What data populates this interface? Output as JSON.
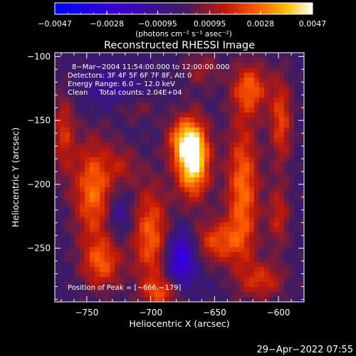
{
  "chart_data": {
    "type": "heatmap",
    "title": "Reconstructed RHESSI Image",
    "xlabel": "Heliocentric X (arcsec)",
    "ylabel": "Heliocentric Y (arcsec)",
    "xlim": [
      -775,
      -580
    ],
    "ylim": [
      -292,
      -97
    ],
    "x_ticks": [
      -750,
      -700,
      -650,
      -600
    ],
    "x_tick_labels": [
      "−750",
      "−700",
      "−650",
      "−600"
    ],
    "y_ticks": [
      -100,
      -150,
      -200,
      -250
    ],
    "y_tick_labels": [
      "−100",
      "−150",
      "−200",
      "−250"
    ],
    "colorbar": {
      "vmin": -0.0047,
      "vmax": 0.0047,
      "ticks": [
        -0.0047,
        -0.0028,
        -0.00095,
        0.00095,
        0.0028,
        0.0047
      ],
      "tick_labels": [
        "−0.0047",
        "−0.0028",
        "−0.00095",
        "0.00095",
        "0.0028",
        "0.0047"
      ],
      "units": "(photons cm⁻² s⁻¹ asec⁻²)"
    },
    "annotations": [
      "8−Mar−2004 11:54:00.000 to 12:00:00.000",
      "Detectors: 3F 4F 5F 6F 7F 8F, Att 0",
      "Energy Range: 6.0 − 12.0 keV",
      "Clean     Total counts: 2.04E+04"
    ],
    "peak_label": "Position of Peak = [−666,−179]",
    "peak": [
      -666,
      -179
    ],
    "blobs": [
      {
        "x": -667,
        "y": -180,
        "sx": 9,
        "sy": 20,
        "amp": 0.0052
      },
      {
        "x": -676,
        "y": -165,
        "sx": 9,
        "sy": 12,
        "amp": 0.002
      },
      {
        "x": -745,
        "y": -205,
        "sx": 11,
        "sy": 28,
        "amp": 0.0029
      },
      {
        "x": -738,
        "y": -262,
        "sx": 11,
        "sy": 14,
        "amp": 0.0024
      },
      {
        "x": -768,
        "y": -160,
        "sx": 6,
        "sy": 22,
        "amp": 0.0019
      },
      {
        "x": -700,
        "y": -240,
        "sx": 10,
        "sy": 28,
        "amp": 0.0027
      },
      {
        "x": -692,
        "y": -285,
        "sx": 10,
        "sy": 8,
        "amp": 0.002
      },
      {
        "x": -722,
        "y": -185,
        "sx": 9,
        "sy": 12,
        "amp": 0.0012
      },
      {
        "x": -648,
        "y": -245,
        "sx": 13,
        "sy": 12,
        "amp": 0.0023
      },
      {
        "x": -660,
        "y": -110,
        "sx": 10,
        "sy": 10,
        "amp": 0.0012
      },
      {
        "x": -628,
        "y": -205,
        "sx": 9,
        "sy": 40,
        "amp": 0.0029
      },
      {
        "x": -622,
        "y": -125,
        "sx": 10,
        "sy": 14,
        "amp": 0.0025
      },
      {
        "x": -598,
        "y": -150,
        "sx": 6,
        "sy": 24,
        "amp": 0.0023
      },
      {
        "x": -600,
        "y": -225,
        "sx": 6,
        "sy": 18,
        "amp": 0.0017
      },
      {
        "x": -612,
        "y": -275,
        "sx": 12,
        "sy": 10,
        "amp": 0.0019
      },
      {
        "x": -712,
        "y": -140,
        "sx": 12,
        "sy": 8,
        "amp": 0.0009
      },
      {
        "x": -676,
        "y": -258,
        "sx": 8,
        "sy": 14,
        "amp": -0.003
      },
      {
        "x": -730,
        "y": -125,
        "sx": 16,
        "sy": 12,
        "amp": -0.001
      },
      {
        "x": -725,
        "y": -222,
        "sx": 7,
        "sy": 12,
        "amp": -0.0012
      }
    ]
  },
  "footer": {
    "timestamp": "29−Apr−2022 07:55"
  }
}
